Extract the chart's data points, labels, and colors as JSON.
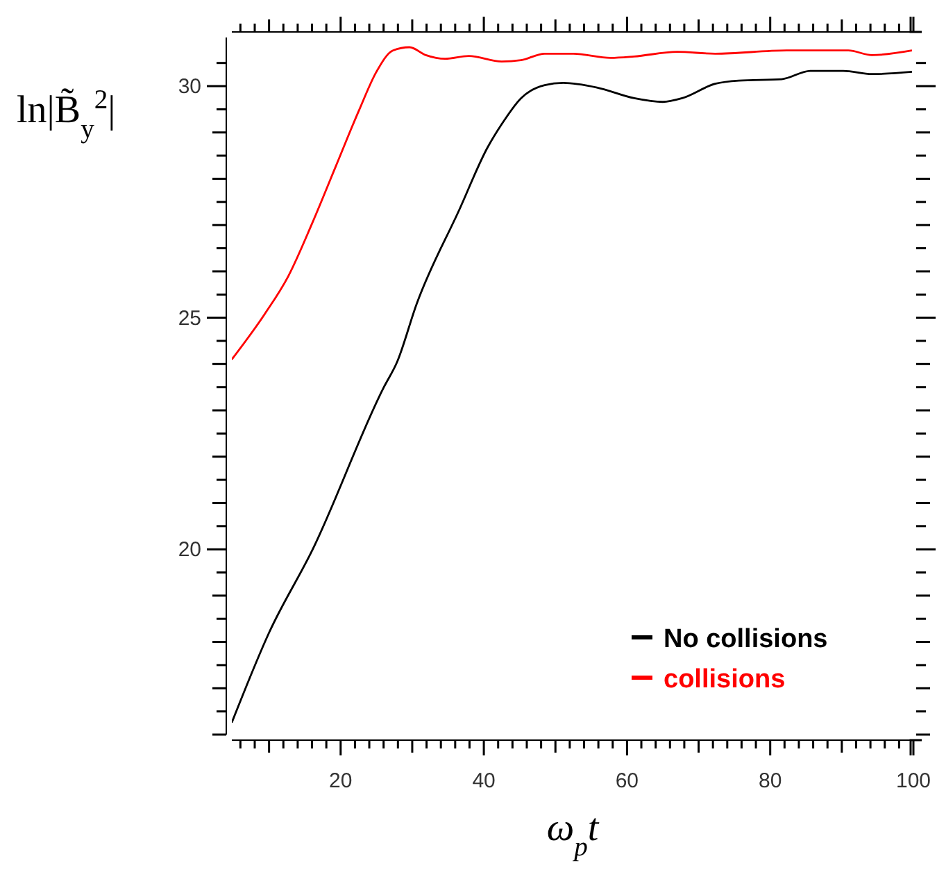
{
  "chart_data": {
    "type": "line",
    "xlabel": "ω$_{p}$t",
    "ylabel": "ln|B̃$_{y}$$^{2}$|",
    "xlim": [
      4.8,
      100
    ],
    "ylim": [
      16,
      31.05
    ],
    "xticks": [
      {
        "value": 6,
        "label": null
      },
      {
        "value": 8,
        "label": null
      },
      {
        "value": 10,
        "label": null
      },
      {
        "value": 12,
        "label": null
      },
      {
        "value": 14,
        "label": null
      },
      {
        "value": 16,
        "label": null
      },
      {
        "value": 18,
        "label": null
      },
      20,
      {
        "value": 22,
        "label": null
      },
      {
        "value": 24,
        "label": null
      },
      {
        "value": 26,
        "label": null
      },
      {
        "value": 28,
        "label": null
      },
      {
        "value": 30,
        "label": null
      },
      {
        "value": 32,
        "label": null
      },
      {
        "value": 34,
        "label": null
      },
      {
        "value": 36,
        "label": null
      },
      {
        "value": 38,
        "label": null
      },
      40,
      {
        "value": 42,
        "label": null
      },
      {
        "value": 44,
        "label": null
      },
      {
        "value": 46,
        "label": null
      },
      {
        "value": 48,
        "label": null
      },
      {
        "value": 50,
        "label": null
      },
      {
        "value": 52,
        "label": null
      },
      {
        "value": 54,
        "label": null
      },
      {
        "value": 56,
        "label": null
      },
      {
        "value": 58,
        "label": null
      },
      60,
      {
        "value": 62,
        "label": null
      },
      {
        "value": 64,
        "label": null
      },
      {
        "value": 66,
        "label": null
      },
      {
        "value": 68,
        "label": null
      },
      {
        "value": 70,
        "label": null
      },
      {
        "value": 72,
        "label": null
      },
      {
        "value": 74,
        "label": null
      },
      {
        "value": 76,
        "label": null
      },
      {
        "value": 78,
        "label": null
      },
      80,
      {
        "value": 82,
        "label": null
      },
      {
        "value": 84,
        "label": null
      },
      {
        "value": 86,
        "label": null
      },
      {
        "value": 88,
        "label": null
      },
      {
        "value": 90,
        "label": null
      },
      {
        "value": 92,
        "label": null
      },
      {
        "value": 94,
        "label": null
      },
      {
        "value": 96,
        "label": null
      },
      {
        "value": 98,
        "label": null
      },
      100
    ],
    "yticks": [
      {
        "value": 16,
        "label": null
      },
      {
        "value": 16.5,
        "label": null
      },
      {
        "value": 17,
        "label": null
      },
      {
        "value": 17.5,
        "label": null
      },
      {
        "value": 18,
        "label": null
      },
      {
        "value": 18.5,
        "label": null
      },
      {
        "value": 19,
        "label": null
      },
      {
        "value": 19.5,
        "label": null
      },
      20,
      {
        "value": 20.5,
        "label": null
      },
      {
        "value": 21,
        "label": null
      },
      {
        "value": 21.5,
        "label": null
      },
      {
        "value": 22,
        "label": null
      },
      {
        "value": 22.5,
        "label": null
      },
      {
        "value": 23,
        "label": null
      },
      {
        "value": 23.5,
        "label": null
      },
      {
        "value": 24,
        "label": null
      },
      {
        "value": 24.5,
        "label": null
      },
      25,
      {
        "value": 25.5,
        "label": null
      },
      {
        "value": 26,
        "label": null
      },
      {
        "value": 26.5,
        "label": null
      },
      {
        "value": 27,
        "label": null
      },
      {
        "value": 27.5,
        "label": null
      },
      {
        "value": 28,
        "label": null
      },
      {
        "value": 28.5,
        "label": null
      },
      {
        "value": 29,
        "label": null
      },
      {
        "value": 29.5,
        "label": null
      },
      30,
      {
        "value": 30.5,
        "label": null
      }
    ],
    "grid": false,
    "legend": "bottom right",
    "line_style": "solid",
    "marker": "none",
    "series": [
      {
        "name": "No collisions",
        "color": "#000000",
        "x": [
          4.8,
          10,
          16.1,
          26,
          27.9,
          30.6,
          36.6,
          40.5,
          42.5,
          45.2,
          48.5,
          51.1,
          55.8,
          61,
          65,
          67.7,
          72.3,
          75.6,
          81.6,
          85.6,
          90.2,
          94.2,
          99.8
        ],
        "values": [
          16.26,
          18.2,
          20,
          23.49,
          24.05,
          25.29,
          27.34,
          28.67,
          29.18,
          29.74,
          30.02,
          30.07,
          29.97,
          29.74,
          29.66,
          29.74,
          30.05,
          30.12,
          30.15,
          30.33,
          30.33,
          30.26,
          30.31
        ]
      },
      {
        "name": "collisions",
        "color": "#ff0000",
        "x": [
          4.8,
          9.4,
          12.7,
          16,
          19.3,
          22.6,
          25,
          27.3,
          29.6,
          31.9,
          34.6,
          37.9,
          42.5,
          45.2,
          48.5,
          52.5,
          57.7,
          61,
          67,
          72.3,
          82.3,
          90.9,
          94.2,
          99.8
        ],
        "values": [
          24.1,
          25.08,
          25.9,
          27.03,
          28.26,
          29.49,
          30.31,
          30.77,
          30.84,
          30.67,
          30.59,
          30.65,
          30.53,
          30.56,
          30.7,
          30.7,
          30.61,
          30.64,
          30.74,
          30.7,
          30.77,
          30.77,
          30.67,
          30.77
        ]
      }
    ]
  }
}
